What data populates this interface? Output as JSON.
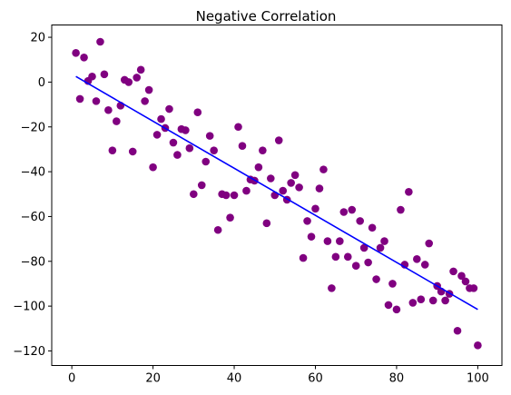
{
  "chart_data": {
    "type": "scatter",
    "title": "Negative Correlation",
    "xlabel": "",
    "ylabel": "",
    "xlim": [
      -4.95,
      105.95
    ],
    "ylim": [
      -126.5,
      25.5
    ],
    "xticks": [
      0,
      20,
      40,
      60,
      80,
      100
    ],
    "yticks": [
      20,
      0,
      -20,
      -40,
      -60,
      -80,
      -100,
      -120
    ],
    "grid": false,
    "point_color": "#800080",
    "line_color": "#0000ff",
    "series": [
      {
        "kind": "points",
        "x": [
          1,
          2,
          3,
          4,
          5,
          6,
          7,
          8,
          9,
          10,
          11,
          12,
          13,
          14,
          15,
          16,
          17,
          18,
          19,
          20,
          21,
          22,
          23,
          24,
          25,
          26,
          27,
          28,
          29,
          30,
          31,
          32,
          33,
          34,
          35,
          36,
          37,
          38,
          39,
          40,
          41,
          42,
          43,
          44,
          45,
          46,
          47,
          48,
          49,
          50,
          51,
          52,
          53,
          54,
          55,
          56,
          57,
          58,
          59,
          60,
          61,
          62,
          63,
          64,
          65,
          66,
          67,
          68,
          69,
          70,
          71,
          72,
          73,
          74,
          75,
          76,
          77,
          78,
          79,
          80,
          81,
          82,
          83,
          84,
          85,
          86,
          87,
          88,
          89,
          90,
          91,
          92,
          93,
          94,
          95,
          96,
          97,
          98,
          99,
          100
        ],
        "y": [
          13,
          -7.5,
          11,
          0.5,
          2.5,
          -8.5,
          18,
          3.5,
          -12.5,
          -30.5,
          -17.5,
          -10.5,
          1,
          0,
          -31,
          2,
          5.5,
          -8.5,
          -3.5,
          -38,
          -23.5,
          -16.5,
          -20.5,
          -12,
          -27,
          -32.5,
          -21,
          -21.5,
          -29.5,
          -50,
          -13.5,
          -46,
          -35.5,
          -24,
          -30.5,
          -66,
          -50,
          -50.5,
          -60.5,
          -50.5,
          -20,
          -28.5,
          -48.5,
          -43.5,
          -44,
          -38,
          -30.5,
          -63,
          -43,
          -50.5,
          -26,
          -48.5,
          -52.5,
          -45,
          -41.5,
          -47,
          -78.5,
          -62,
          -69,
          -56.5,
          -47.5,
          -39,
          -71,
          -92,
          -78,
          -71,
          -58,
          -78,
          -57,
          -82,
          -62,
          -74,
          -80.5,
          -65,
          -88,
          -74,
          -71,
          -99.5,
          -90,
          -101.5,
          -57,
          -81.5,
          -49,
          -98.5,
          -79,
          -97,
          -81.5,
          -72,
          -97.5,
          -91,
          -93.5,
          -97.5,
          -94.5,
          -84.5,
          -111,
          -86.5,
          -89,
          -92,
          -92,
          -117.5
        ]
      },
      {
        "kind": "line",
        "x": [
          1,
          100
        ],
        "y": [
          2.5,
          -101.5
        ]
      }
    ]
  }
}
